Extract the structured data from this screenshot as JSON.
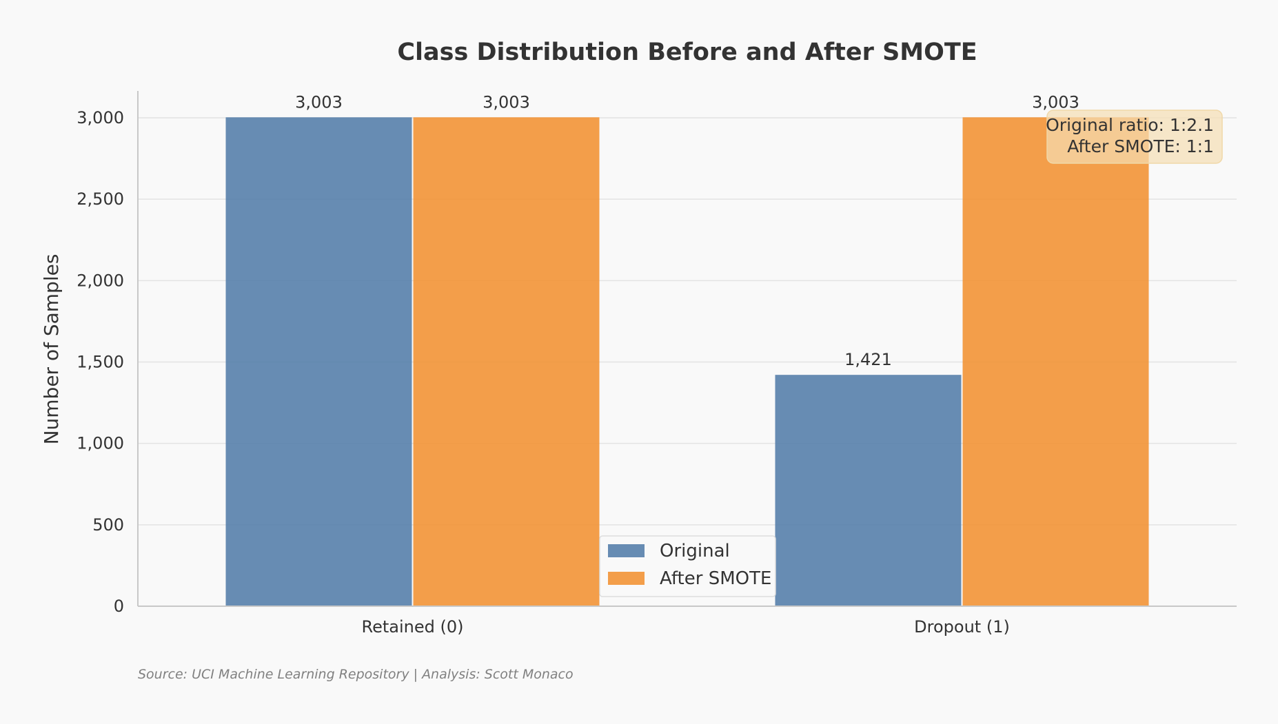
{
  "chart_data": {
    "type": "bar",
    "title": "Class Distribution Before and After SMOTE",
    "xlabel": "",
    "ylabel": "Number of Samples",
    "categories": [
      "Retained (0)",
      "Dropout (1)"
    ],
    "series": [
      {
        "name": "Original",
        "values": [
          3003,
          1421
        ],
        "labels": [
          "3,003",
          "1,421"
        ],
        "color": "#4e79a7"
      },
      {
        "name": "After SMOTE",
        "values": [
          3003,
          3003
        ],
        "labels": [
          "3,003",
          "3,003"
        ],
        "color": "#f28e2b"
      }
    ],
    "ylim": [
      0,
      3165
    ],
    "yticks": [
      0,
      500,
      1000,
      1500,
      2000,
      2500,
      3000
    ],
    "ytick_labels": [
      "0",
      "500",
      "1,000",
      "1,500",
      "2,000",
      "2,500",
      "3,000"
    ],
    "grid": "horizontal",
    "legend_position": "bottom-center",
    "annotation": {
      "line1": "Original ratio: 1:2.1",
      "line2": "After SMOTE: 1:1"
    },
    "source": "Source: UCI Machine Learning Repository | Analysis: Scott Monaco"
  }
}
